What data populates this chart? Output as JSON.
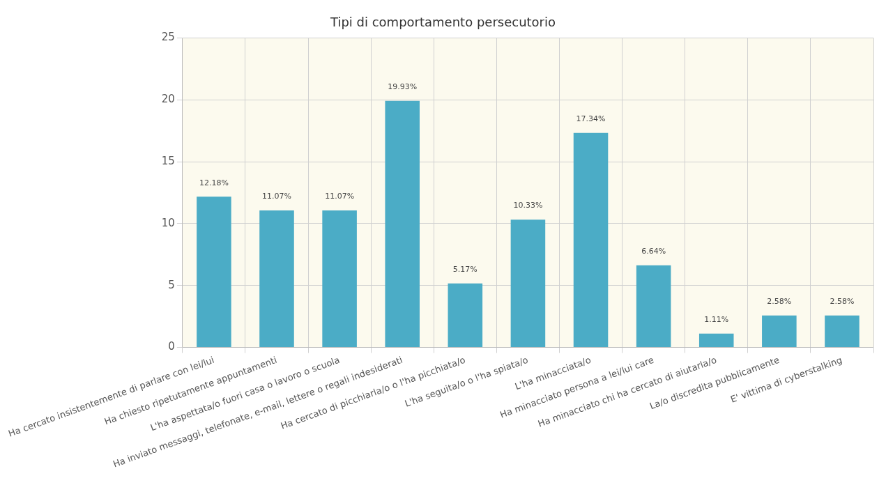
{
  "chart_data": {
    "type": "bar",
    "title": "Tipi di comportamento persecutorio",
    "categories": [
      "Ha cercato insistentemente di parlare con lei/lui",
      "Ha chiesto ripetutamente appuntamenti",
      "L'ha aspettata/o fuori casa o lavoro o scuola",
      "Ha inviato messaggi, telefonate, e-mail, lettere o regali indesiderati",
      "Ha cercato di picchiarla/o o l'ha picchiata/o",
      "L'ha seguita/o o l'ha spiata/o",
      "L'ha minacciata/o",
      "Ha minacciato persona a lei/lui care",
      "Ha minacciato chi ha cercato di aiutarla/o",
      "La/o discredita pubblicamente",
      "E' vittima di cyberstalking"
    ],
    "values": [
      12.18,
      11.07,
      11.07,
      19.93,
      5.17,
      10.33,
      17.34,
      6.64,
      1.11,
      2.58,
      2.58
    ],
    "value_labels": [
      "12.18%",
      "11.07%",
      "11.07%",
      "19.93%",
      "5.17%",
      "10.33%",
      "17.34%",
      "6.64%",
      "1.11%",
      "2.58%",
      "2.58%"
    ],
    "color": "#4bacc6",
    "ylim": [
      0,
      25
    ],
    "yticks": [
      0,
      5,
      10,
      15,
      20,
      25
    ],
    "grid": true,
    "legend": false
  }
}
